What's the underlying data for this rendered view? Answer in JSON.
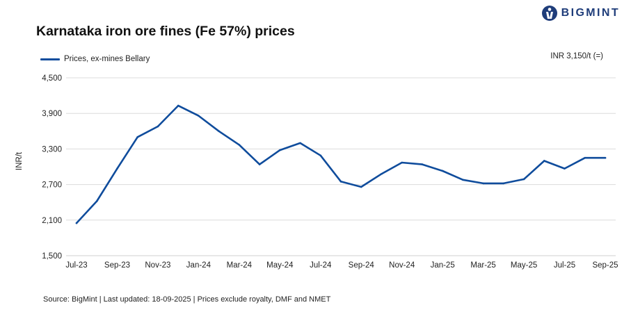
{
  "brand": {
    "name": "BIGMINT",
    "color": "#1f3d7a"
  },
  "chart_data": {
    "type": "line",
    "title": "Karnataka iron ore fines (Fe 57%) prices",
    "ylabel": "INR/t",
    "xlabel": "",
    "ylim": [
      1500,
      4500
    ],
    "yticks": [
      1500,
      2100,
      2700,
      3300,
      3900,
      4500
    ],
    "ytick_labels": [
      "1,500",
      "2,100",
      "2,700",
      "3,300",
      "3,900",
      "4,500"
    ],
    "x": [
      "Jul-23",
      "Aug-23",
      "Sep-23",
      "Oct-23",
      "Nov-23",
      "Dec-23",
      "Jan-24",
      "Feb-24",
      "Mar-24",
      "Apr-24",
      "May-24",
      "Jun-24",
      "Jul-24",
      "Aug-24",
      "Sep-24",
      "Oct-24",
      "Nov-24",
      "Dec-24",
      "Jan-25",
      "Feb-25",
      "Mar-25",
      "Apr-25",
      "May-25",
      "Jun-25",
      "Jul-25",
      "Aug-25",
      "Sep-25"
    ],
    "xtick_labels": [
      "Jul-23",
      "Sep-23",
      "Nov-23",
      "Jan-24",
      "Mar-24",
      "May-24",
      "Jul-24",
      "Sep-24",
      "Nov-24",
      "Jan-25",
      "Mar-25",
      "May-25",
      "Jul-25",
      "Sep-25"
    ],
    "grid": true,
    "legend_position": "top-left",
    "series": [
      {
        "name": "Prices, ex-mines Bellary",
        "color": "#0f4c9c",
        "values": [
          2050,
          2420,
          2970,
          3500,
          3680,
          4030,
          3860,
          3600,
          3370,
          3040,
          3280,
          3400,
          3190,
          2750,
          2660,
          2880,
          3070,
          3040,
          2930,
          2780,
          2720,
          2720,
          2790,
          3100,
          2970,
          3150,
          3150
        ]
      }
    ]
  },
  "annotation": "INR 3,150/t (=)",
  "source": "Source: BigMint | Last updated: 18-09-2025 | Prices exclude royalty, DMF and NMET"
}
